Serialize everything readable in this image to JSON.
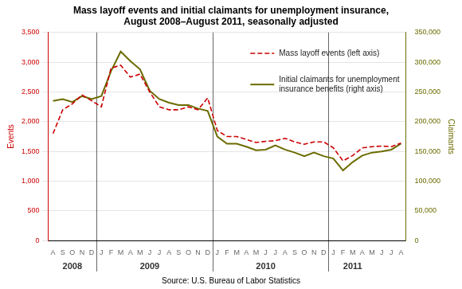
{
  "chart_data": {
    "type": "line",
    "title": "Mass layoff events and initial claimants for unemployment insurance,\nAugust 2008–August 2011, seasonally adjusted",
    "source": "Source: U.S. Bureau of Labor Statistics",
    "categories": [
      "A",
      "S",
      "O",
      "N",
      "D",
      "J",
      "F",
      "M",
      "A",
      "M",
      "J",
      "J",
      "A",
      "S",
      "O",
      "N",
      "D",
      "J",
      "F",
      "M",
      "A",
      "M",
      "J",
      "J",
      "A",
      "S",
      "O",
      "N",
      "D",
      "J",
      "F",
      "M",
      "A",
      "M",
      "J",
      "J",
      "A"
    ],
    "series": [
      {
        "name": "Mass layoff events (left axis)",
        "color": "#CC0000",
        "line_style": "dashed",
        "axis": "y",
        "values": [
          1800,
          2200,
          2300,
          2450,
          2350,
          2250,
          2900,
          2950,
          2750,
          2800,
          2500,
          2250,
          2200,
          2200,
          2250,
          2200,
          2400,
          1850,
          1750,
          1750,
          1700,
          1650,
          1670,
          1680,
          1720,
          1660,
          1620,
          1660,
          1660,
          1560,
          1340,
          1430,
          1560,
          1580,
          1590,
          1580,
          1640
        ]
      },
      {
        "name": "Initial claimants for unemployment\ninsurance benefits (right axis)",
        "color": "#6B6B00",
        "line_style": "solid",
        "axis": "y2",
        "values": [
          235000,
          238000,
          233000,
          243000,
          238000,
          243000,
          285000,
          318000,
          302000,
          288000,
          252000,
          238000,
          232000,
          228000,
          228000,
          222000,
          218000,
          175000,
          163000,
          163000,
          158000,
          152000,
          153000,
          160000,
          153000,
          148000,
          142000,
          148000,
          142000,
          138000,
          118000,
          132000,
          143000,
          148000,
          150000,
          153000,
          163000
        ]
      }
    ],
    "ylabel": "Events",
    "y2label": "Claimants",
    "ylim": [
      0,
      3500
    ],
    "yticks": [
      0,
      500,
      {
        "value": 1000,
        "label": "1,000"
      },
      {
        "value": 1500,
        "label": "1,500"
      },
      {
        "value": 2000,
        "label": "2,000"
      },
      {
        "value": 2500,
        "label": "2,500"
      },
      {
        "value": 3000,
        "label": "3,000"
      },
      {
        "value": 3500,
        "label": "3,500"
      }
    ],
    "y2lim": [
      0,
      350000
    ],
    "y2ticks": [
      0,
      {
        "value": 50000,
        "label": "50,000"
      },
      {
        "value": 100000,
        "label": "100,000"
      },
      {
        "value": 150000,
        "label": "150,000"
      },
      {
        "value": 200000,
        "label": "200,000"
      },
      {
        "value": 250000,
        "label": "250,000"
      },
      {
        "value": 300000,
        "label": "300,000"
      },
      {
        "value": 350000,
        "label": "350,000"
      }
    ],
    "annotations": [
      {
        "text": "2008",
        "x": 2
      },
      {
        "text": "2009",
        "x": 10
      },
      {
        "text": "2010",
        "x": 22
      },
      {
        "text": "2011",
        "x": 31
      }
    ],
    "vlines": [
      4.5,
      16.5,
      28.5
    ],
    "grid": true,
    "legend": "upper right"
  }
}
